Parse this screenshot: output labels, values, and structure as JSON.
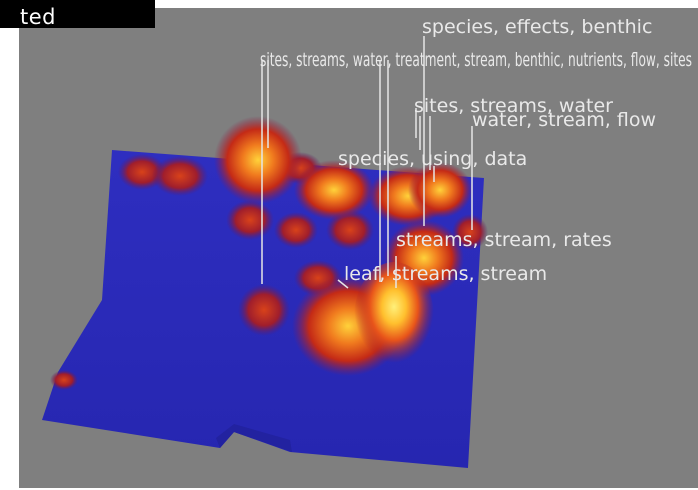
{
  "window": {
    "title": "ted"
  },
  "colors": {
    "background": "#7f7f7f",
    "terrain": "#2a2ab8",
    "peak_low": "#b41a14",
    "peak_mid": "#e0501a",
    "peak_high": "#ffe23a",
    "label": "#e9e9e9"
  },
  "labels": [
    {
      "id": "species-effects-benthic",
      "text": "species, effects, benthic"
    },
    {
      "id": "overlapping-top-labels",
      "text": "sites, streams, water, treatment, stream, benthic, nutrients, flow, sites"
    },
    {
      "id": "sites-streams-water",
      "text": "sites, streams, water"
    },
    {
      "id": "water-stream-flow",
      "text": "water, stream, flow"
    },
    {
      "id": "species-using-data",
      "text": "species, using, data"
    },
    {
      "id": "streams-stream-rates",
      "text": "streams, stream, rates"
    },
    {
      "id": "leaf",
      "text": "leaf,"
    },
    {
      "id": "streams-stream",
      "text": "streams, stream"
    }
  ]
}
